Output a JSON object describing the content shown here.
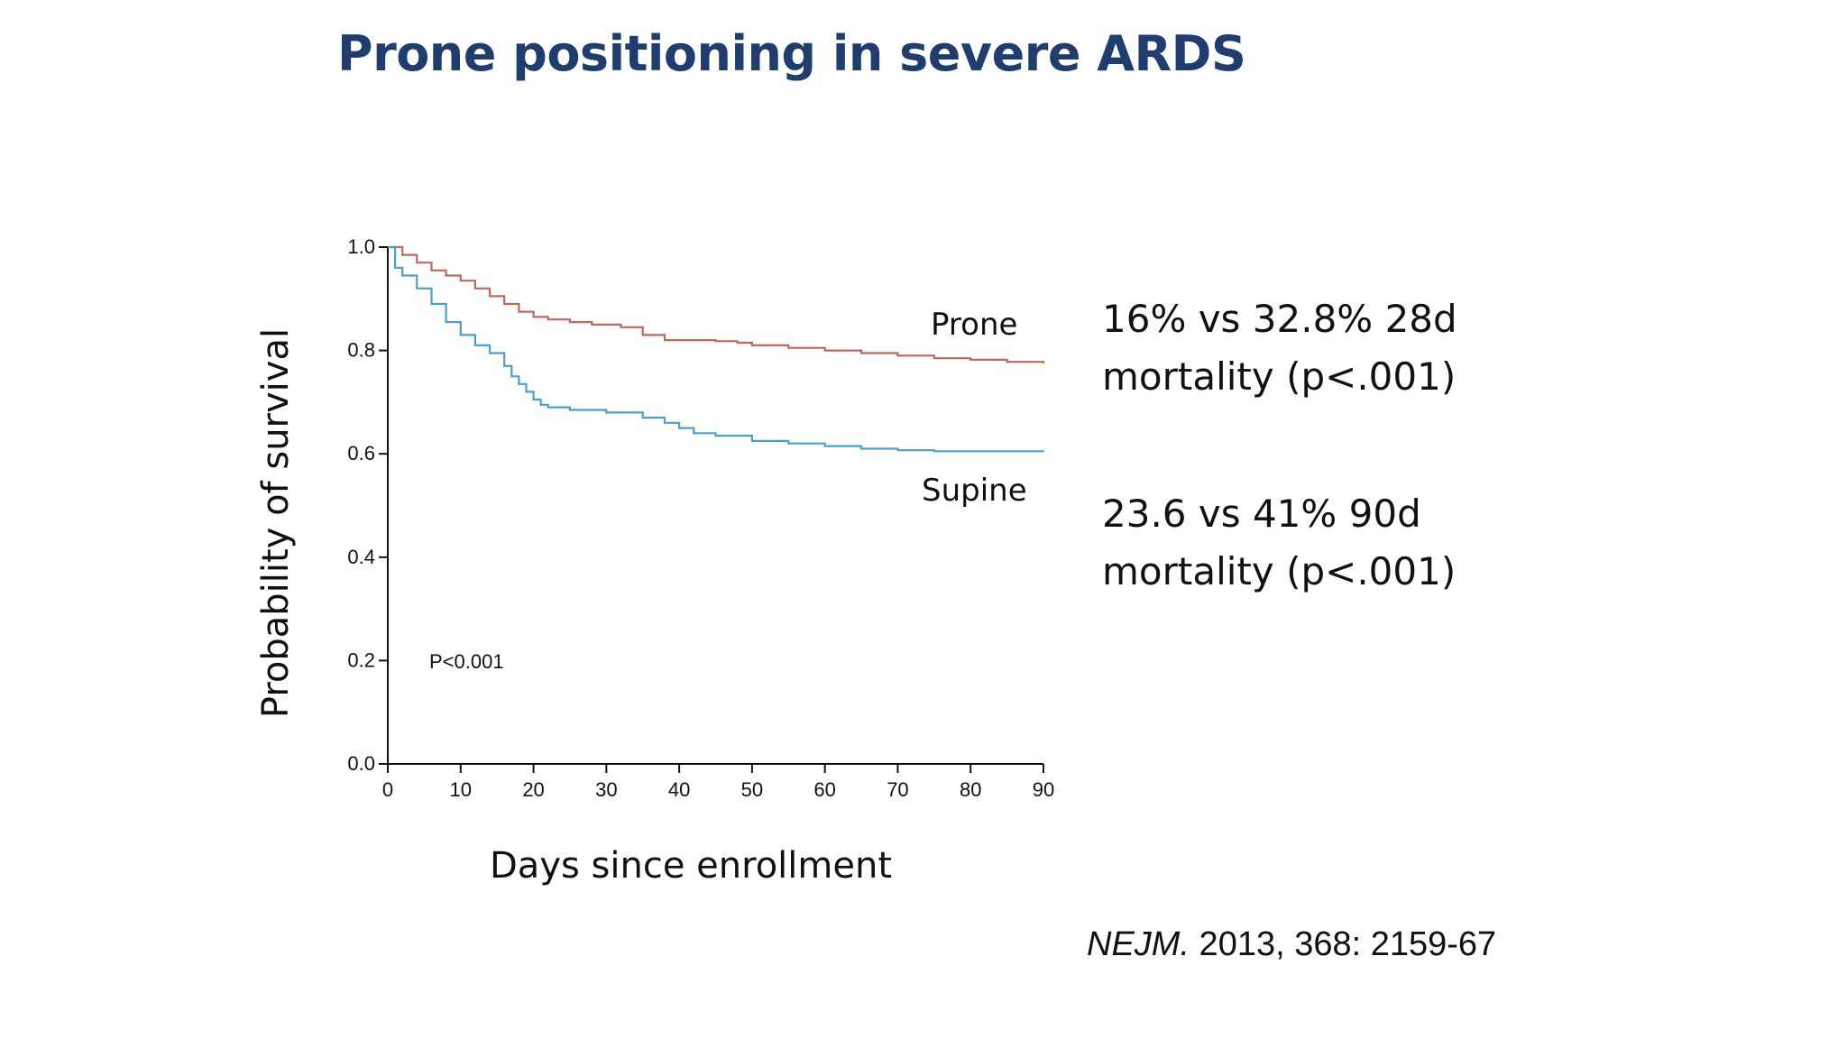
{
  "slide": {
    "title": "Prone positioning in severe ARDS",
    "stats": [
      {
        "line1": "16% vs 32.8% 28d",
        "line2": "mortality (p<.001)"
      },
      {
        "line1": "23.6 vs 41% 90d",
        "line2": "mortality (p<.001)"
      }
    ],
    "citation": {
      "journal": "NEJM.",
      "details": " 2013, 368: 2159-67"
    }
  },
  "chart_data": {
    "type": "line",
    "title": "",
    "xlabel": "Days since enrollment",
    "ylabel": "Probability of survival",
    "xlim": [
      0,
      90
    ],
    "ylim": [
      0,
      1.0
    ],
    "xticks": [
      0,
      10,
      20,
      30,
      40,
      50,
      60,
      70,
      80,
      90
    ],
    "yticks": [
      "0.0",
      "0.2",
      "0.4",
      "0.6",
      "0.8",
      "1.0"
    ],
    "grid": false,
    "annotation": "P<0.001",
    "series": [
      {
        "name": "Prone",
        "color": "#c0675a",
        "x": [
          0,
          2,
          4,
          6,
          8,
          10,
          12,
          14,
          16,
          18,
          20,
          22,
          25,
          28,
          32,
          35,
          38,
          40,
          45,
          48,
          50,
          55,
          60,
          65,
          70,
          75,
          80,
          85,
          90
        ],
        "y": [
          1.0,
          0.985,
          0.97,
          0.955,
          0.945,
          0.935,
          0.92,
          0.905,
          0.89,
          0.875,
          0.865,
          0.86,
          0.855,
          0.85,
          0.845,
          0.83,
          0.82,
          0.82,
          0.818,
          0.815,
          0.81,
          0.805,
          0.8,
          0.795,
          0.79,
          0.785,
          0.782,
          0.778,
          0.775
        ]
      },
      {
        "name": "Supine",
        "color": "#4aa0cc",
        "x": [
          0,
          1,
          2,
          4,
          6,
          8,
          10,
          12,
          14,
          16,
          17,
          18,
          19,
          20,
          21,
          22,
          25,
          28,
          30,
          35,
          38,
          40,
          42,
          45,
          50,
          55,
          60,
          65,
          70,
          75,
          80,
          85,
          90
        ],
        "y": [
          1.0,
          0.96,
          0.945,
          0.92,
          0.89,
          0.855,
          0.83,
          0.81,
          0.795,
          0.77,
          0.75,
          0.735,
          0.72,
          0.705,
          0.695,
          0.69,
          0.685,
          0.685,
          0.68,
          0.67,
          0.66,
          0.65,
          0.64,
          0.635,
          0.625,
          0.62,
          0.615,
          0.61,
          0.607,
          0.605,
          0.605,
          0.605,
          0.604
        ]
      }
    ]
  }
}
